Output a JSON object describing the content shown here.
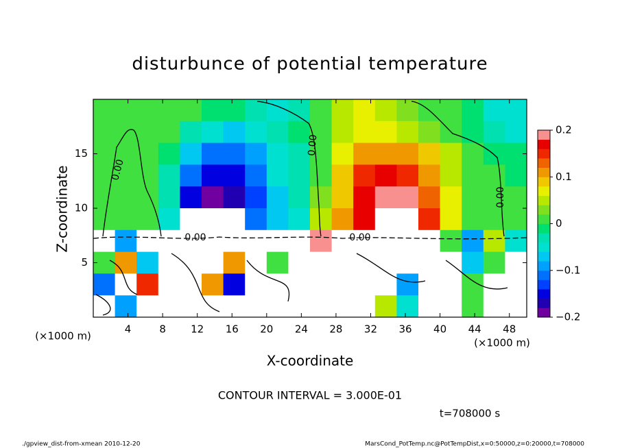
{
  "chart_data": {
    "type": "heatmap",
    "title": "disturbunce of potential temperature",
    "xlabel": "X-coordinate",
    "ylabel": "Z-coordinate",
    "xunit": "(×1000 m)",
    "yunit": "(×1000 m)",
    "xlim": [
      0,
      50
    ],
    "ylim": [
      0,
      20
    ],
    "xticks": [
      4,
      8,
      12,
      16,
      20,
      24,
      28,
      32,
      36,
      40,
      44,
      48
    ],
    "yticks": [
      5,
      10,
      15
    ],
    "x": [
      1.25,
      3.75,
      6.25,
      8.75,
      11.25,
      13.75,
      16.25,
      18.75,
      21.25,
      23.75,
      26.25,
      28.75,
      31.25,
      33.75,
      36.25,
      38.75,
      41.25,
      43.75,
      46.25,
      48.75
    ],
    "y": [
      19,
      17,
      15,
      13,
      11,
      9,
      7,
      5,
      3,
      1
    ],
    "values": [
      [
        0.02,
        0.02,
        0.01,
        0.01,
        0.0,
        -0.01,
        -0.02,
        -0.03,
        -0.04,
        -0.03,
        0.0,
        0.05,
        0.06,
        0.05,
        0.03,
        0.01,
        0.0,
        -0.02,
        -0.04,
        -0.05
      ],
      [
        0.02,
        0.02,
        0.01,
        0.0,
        -0.03,
        -0.06,
        -0.07,
        -0.05,
        -0.03,
        -0.02,
        0.01,
        0.05,
        0.07,
        0.07,
        0.05,
        0.03,
        0.01,
        -0.01,
        -0.03,
        -0.04
      ],
      [
        0.02,
        0.02,
        0.01,
        -0.02,
        -0.07,
        -0.11,
        -0.12,
        -0.09,
        -0.05,
        -0.03,
        0.02,
        0.06,
        0.1,
        0.12,
        0.11,
        0.08,
        0.04,
        0.01,
        -0.01,
        -0.02
      ],
      [
        0.02,
        0.02,
        0.01,
        -0.03,
        -0.11,
        -0.16,
        -0.15,
        -0.11,
        -0.06,
        -0.03,
        0.02,
        0.08,
        0.14,
        0.16,
        0.15,
        0.11,
        0.05,
        0.02,
        0.0,
        -0.01
      ],
      [
        0.02,
        0.02,
        0.01,
        -0.03,
        -0.15,
        -0.19,
        -0.18,
        -0.13,
        -0.07,
        -0.03,
        0.03,
        0.09,
        0.16,
        0.19,
        0.18,
        0.13,
        0.06,
        0.02,
        0.0,
        0.0
      ],
      [
        0.02,
        0.02,
        0.01,
        -0.04,
        -0.25,
        -0.3,
        -0.25,
        -0.12,
        -0.08,
        -0.05,
        0.04,
        0.1,
        0.17,
        0.22,
        0.25,
        0.14,
        0.06,
        0.02,
        0.01,
        0.0
      ],
      [
        0.3,
        -0.1,
        0.25,
        0.3,
        0.3,
        -0.3,
        0.3,
        0.25,
        0.3,
        -0.3,
        0.2,
        0.3,
        0.3,
        0.3,
        0.3,
        0.3,
        0.01,
        -0.1,
        0.05,
        -0.05
      ],
      [
        0.0,
        0.12,
        -0.08,
        0.3,
        -0.25,
        0.3,
        0.12,
        -0.3,
        0.0,
        -0.3,
        -0.3,
        0.3,
        0.3,
        0.3,
        0.3,
        -0.3,
        0.3,
        -0.08,
        0.0,
        -0.3
      ],
      [
        -0.12,
        0.3,
        0.15,
        -0.3,
        0.3,
        0.1,
        -0.15,
        0.3,
        -0.3,
        0.3,
        0.3,
        -0.3,
        0.25,
        0.3,
        -0.1,
        0.3,
        -0.3,
        0.0,
        0.3,
        0.3
      ],
      [
        0.3,
        -0.1,
        0.3,
        0.3,
        -0.3,
        0.3,
        -0.3,
        0.3,
        0.3,
        -0.3,
        0.3,
        0.3,
        0.3,
        0.05,
        -0.05,
        0.3,
        0.3,
        0.0,
        0.3,
        0.3
      ]
    ],
    "colorbar": {
      "lim": [
        -0.2,
        0.2
      ],
      "ticks": [
        {
          "value": -0.2,
          "label": "−0.2"
        },
        {
          "value": -0.1,
          "label": "−0.1"
        },
        0,
        0.1,
        0.2
      ],
      "colors": [
        "#7000a0",
        "#2000b0",
        "#0000e0",
        "#0040ff",
        "#0070ff",
        "#00a0ff",
        "#00c8f0",
        "#00e0d0",
        "#00e0b0",
        "#00e070",
        "#40e040",
        "#80e020",
        "#b8e800",
        "#e8f000",
        "#f0c800",
        "#f09800",
        "#f06400",
        "#f02800",
        "#e80000",
        "#f89090"
      ],
      "out_of_range_color": "#ffffff"
    },
    "contour_labels": [
      "0.00",
      "0.00",
      "0.00",
      "0.00",
      "0.00"
    ],
    "contour_interval": "CONTOUR INTERVAL = 3.000E-01",
    "time_label": "t=708000 s",
    "footer_left": "./gpview_dist-from-xmean  2010-12-20",
    "footer_right": "MarsCond_PotTemp.nc@PotTempDist,x=0:50000,z=0:20000,t=708000"
  }
}
